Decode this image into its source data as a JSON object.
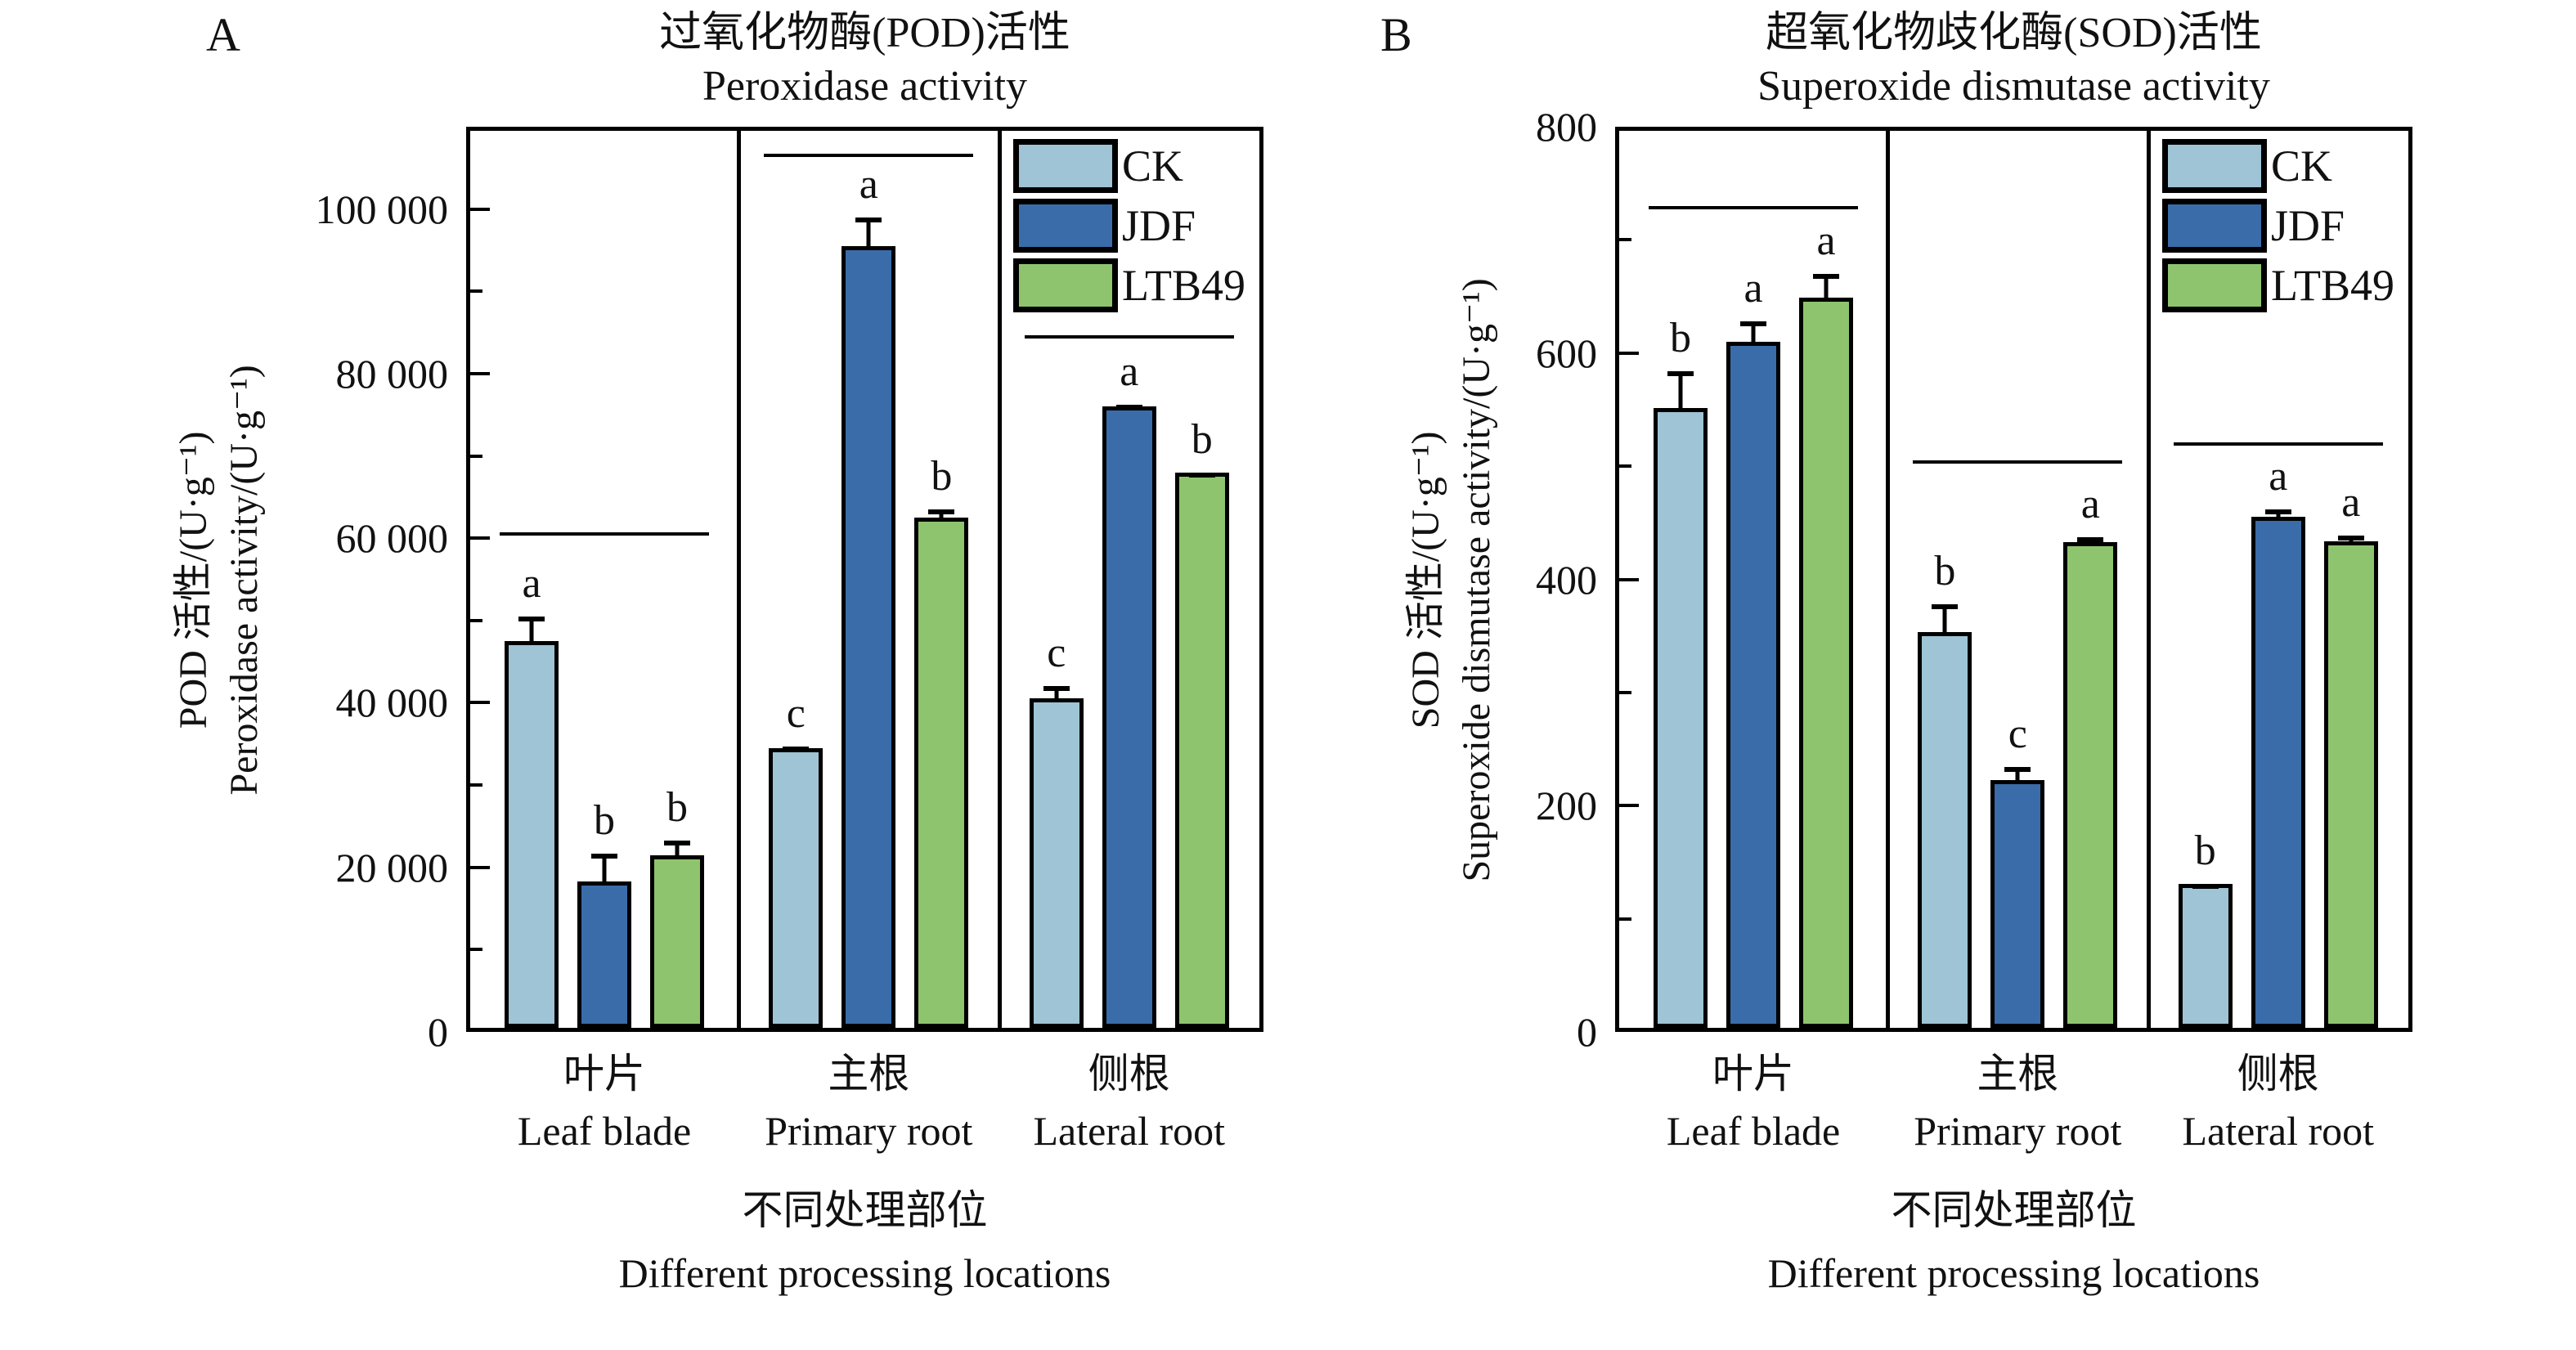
{
  "figure_background": "#ffffff",
  "chart_data": [
    {
      "type": "bar",
      "panel_label": "A",
      "title_zh": "过氧化物酶(POD)活性",
      "title_en": "Peroxidase activity",
      "ylabel_zh": "POD 活性/(U·g⁻¹)",
      "ylabel_en": "Peroxidase activity/(U·g⁻¹)",
      "xlabel_zh": "不同处理部位",
      "xlabel_en": "Different processing locations",
      "ylim": [
        0,
        110000
      ],
      "yticks": [
        0,
        20000,
        40000,
        60000,
        80000,
        100000
      ],
      "ytick_labels": [
        "0",
        "20 000",
        "40 000",
        "60 000",
        "80 000",
        "100 000"
      ],
      "minor_step": 10000,
      "grid": false,
      "legend_position": "top-right",
      "categories_zh": [
        "叶片",
        "主根",
        "侧根"
      ],
      "categories_en": [
        "Leaf blade",
        "Primary root",
        "Lateral root"
      ],
      "series": [
        {
          "name": "CK",
          "color": "#9EC4D6",
          "values": [
            47000,
            34000,
            40000
          ],
          "errors": [
            3500,
            700,
            2000
          ],
          "letters": [
            "a",
            "c",
            "c"
          ]
        },
        {
          "name": "JDF",
          "color": "#3A6CA9",
          "values": [
            17800,
            95000,
            75500
          ],
          "errors": [
            3900,
            4000,
            700
          ],
          "letters": [
            "b",
            "a",
            "a"
          ]
        },
        {
          "name": "LTB49",
          "color": "#8EC46E",
          "values": [
            21000,
            62000,
            67500
          ],
          "errors": [
            2300,
            1500,
            500
          ],
          "letters": [
            "b",
            "b",
            "b"
          ]
        }
      ],
      "group_lines": [
        60000,
        106000,
        84000
      ]
    },
    {
      "type": "bar",
      "panel_label": "B",
      "title_zh": "超氧化物歧化酶(SOD)活性",
      "title_en": "Superoxide dismutase activity",
      "ylabel_zh": "SOD 活性/(U·g⁻¹)",
      "ylabel_en": "Superoxide dismutase activity/(U·g⁻¹)",
      "xlabel_zh": "不同处理部位",
      "xlabel_en": "Different processing locations",
      "ylim": [
        0,
        800
      ],
      "yticks": [
        0,
        200,
        400,
        600,
        800
      ],
      "ytick_labels": [
        "0",
        "200",
        "400",
        "600",
        "800"
      ],
      "minor_step": 100,
      "grid": false,
      "legend_position": "top-right",
      "categories_zh": [
        "叶片",
        "主根",
        "侧根"
      ],
      "categories_en": [
        "Leaf blade",
        "Primary root",
        "Lateral root"
      ],
      "series": [
        {
          "name": "CK",
          "color": "#9EC4D6",
          "values": [
            548,
            350,
            127
          ],
          "errors": [
            36,
            28,
            4
          ],
          "letters": [
            "b",
            "b",
            "b"
          ]
        },
        {
          "name": "JDF",
          "color": "#3A6CA9",
          "values": [
            606,
            219,
            452
          ],
          "errors": [
            22,
            15,
            10
          ],
          "letters": [
            "a",
            "c",
            "a"
          ]
        },
        {
          "name": "LTB49",
          "color": "#8EC46E",
          "values": [
            645,
            429,
            430
          ],
          "errors": [
            25,
            8,
            9
          ],
          "letters": [
            "a",
            "a",
            "a"
          ]
        }
      ],
      "group_lines": [
        725,
        500,
        516
      ]
    }
  ]
}
